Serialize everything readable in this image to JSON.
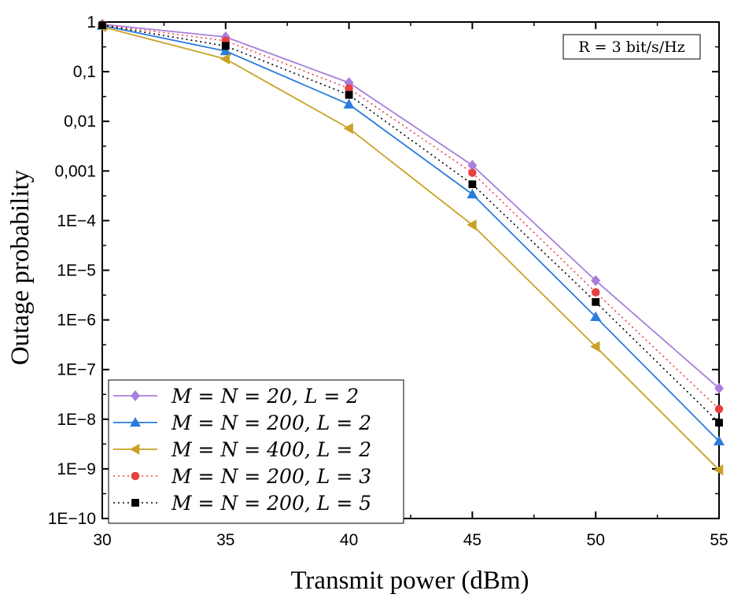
{
  "chart_data": {
    "type": "line",
    "title": "",
    "xlabel": "Transmit power (dBm)",
    "ylabel": "Outage probability",
    "xlim": [
      30,
      55
    ],
    "ylim": [
      1e-10,
      1
    ],
    "yscale": "log",
    "x_ticks": [
      "30",
      "35",
      "40",
      "45",
      "50",
      "55"
    ],
    "y_ticks": [
      "1",
      "0,1",
      "0,01",
      "0,001",
      "1E−4",
      "1E−5",
      "1E−6",
      "1E−7",
      "1E−8",
      "1E−9",
      "1E−10"
    ],
    "grid": false,
    "legend_position": "bottom-left",
    "annotation": "R = 3 bit/s/Hz",
    "x": [
      30,
      35,
      40,
      45,
      50,
      55
    ],
    "series": [
      {
        "name": "M = N = 20, L = 2",
        "color": "#a77fdc",
        "marker": "diamond",
        "linestyle": "solid",
        "values": [
          0.9,
          0.5,
          0.06,
          0.0013,
          6.2e-06,
          4.2e-08
        ]
      },
      {
        "name": "M = N = 200, L = 2",
        "color": "#2a7bdc",
        "marker": "triangle-up",
        "linestyle": "solid",
        "values": [
          0.85,
          0.26,
          0.022,
          0.00034,
          1.15e-06,
          3.6e-09
        ]
      },
      {
        "name": "M = N = 400, L = 2",
        "color": "#c9a227",
        "marker": "triangle-left",
        "linestyle": "solid",
        "values": [
          0.8,
          0.18,
          0.0072,
          8.2e-05,
          2.9e-07,
          9.5e-10
        ]
      },
      {
        "name": "M = N = 200, L = 3",
        "color": "#e83f3f",
        "marker": "circle",
        "linestyle": "dotted",
        "values": [
          0.88,
          0.42,
          0.046,
          0.00092,
          3.6e-06,
          1.6e-08
        ]
      },
      {
        "name": "M = N = 200, L = 5",
        "color": "#000000",
        "marker": "square",
        "linestyle": "dotted",
        "values": [
          0.86,
          0.33,
          0.034,
          0.00054,
          2.3e-06,
          8.5e-09
        ]
      }
    ]
  }
}
